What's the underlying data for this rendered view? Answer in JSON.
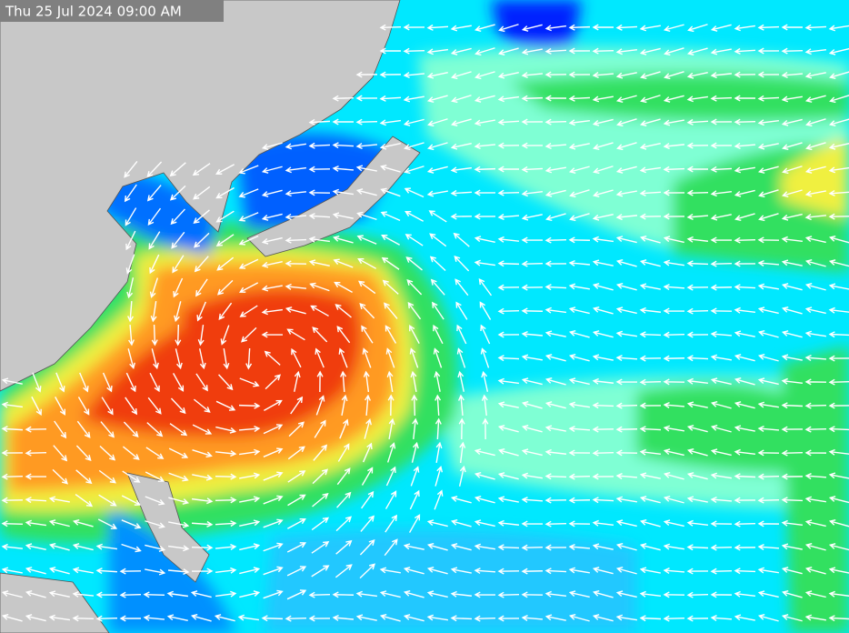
{
  "timestamp": "Thu 25 Jul 2024 09:00 AM"
}
